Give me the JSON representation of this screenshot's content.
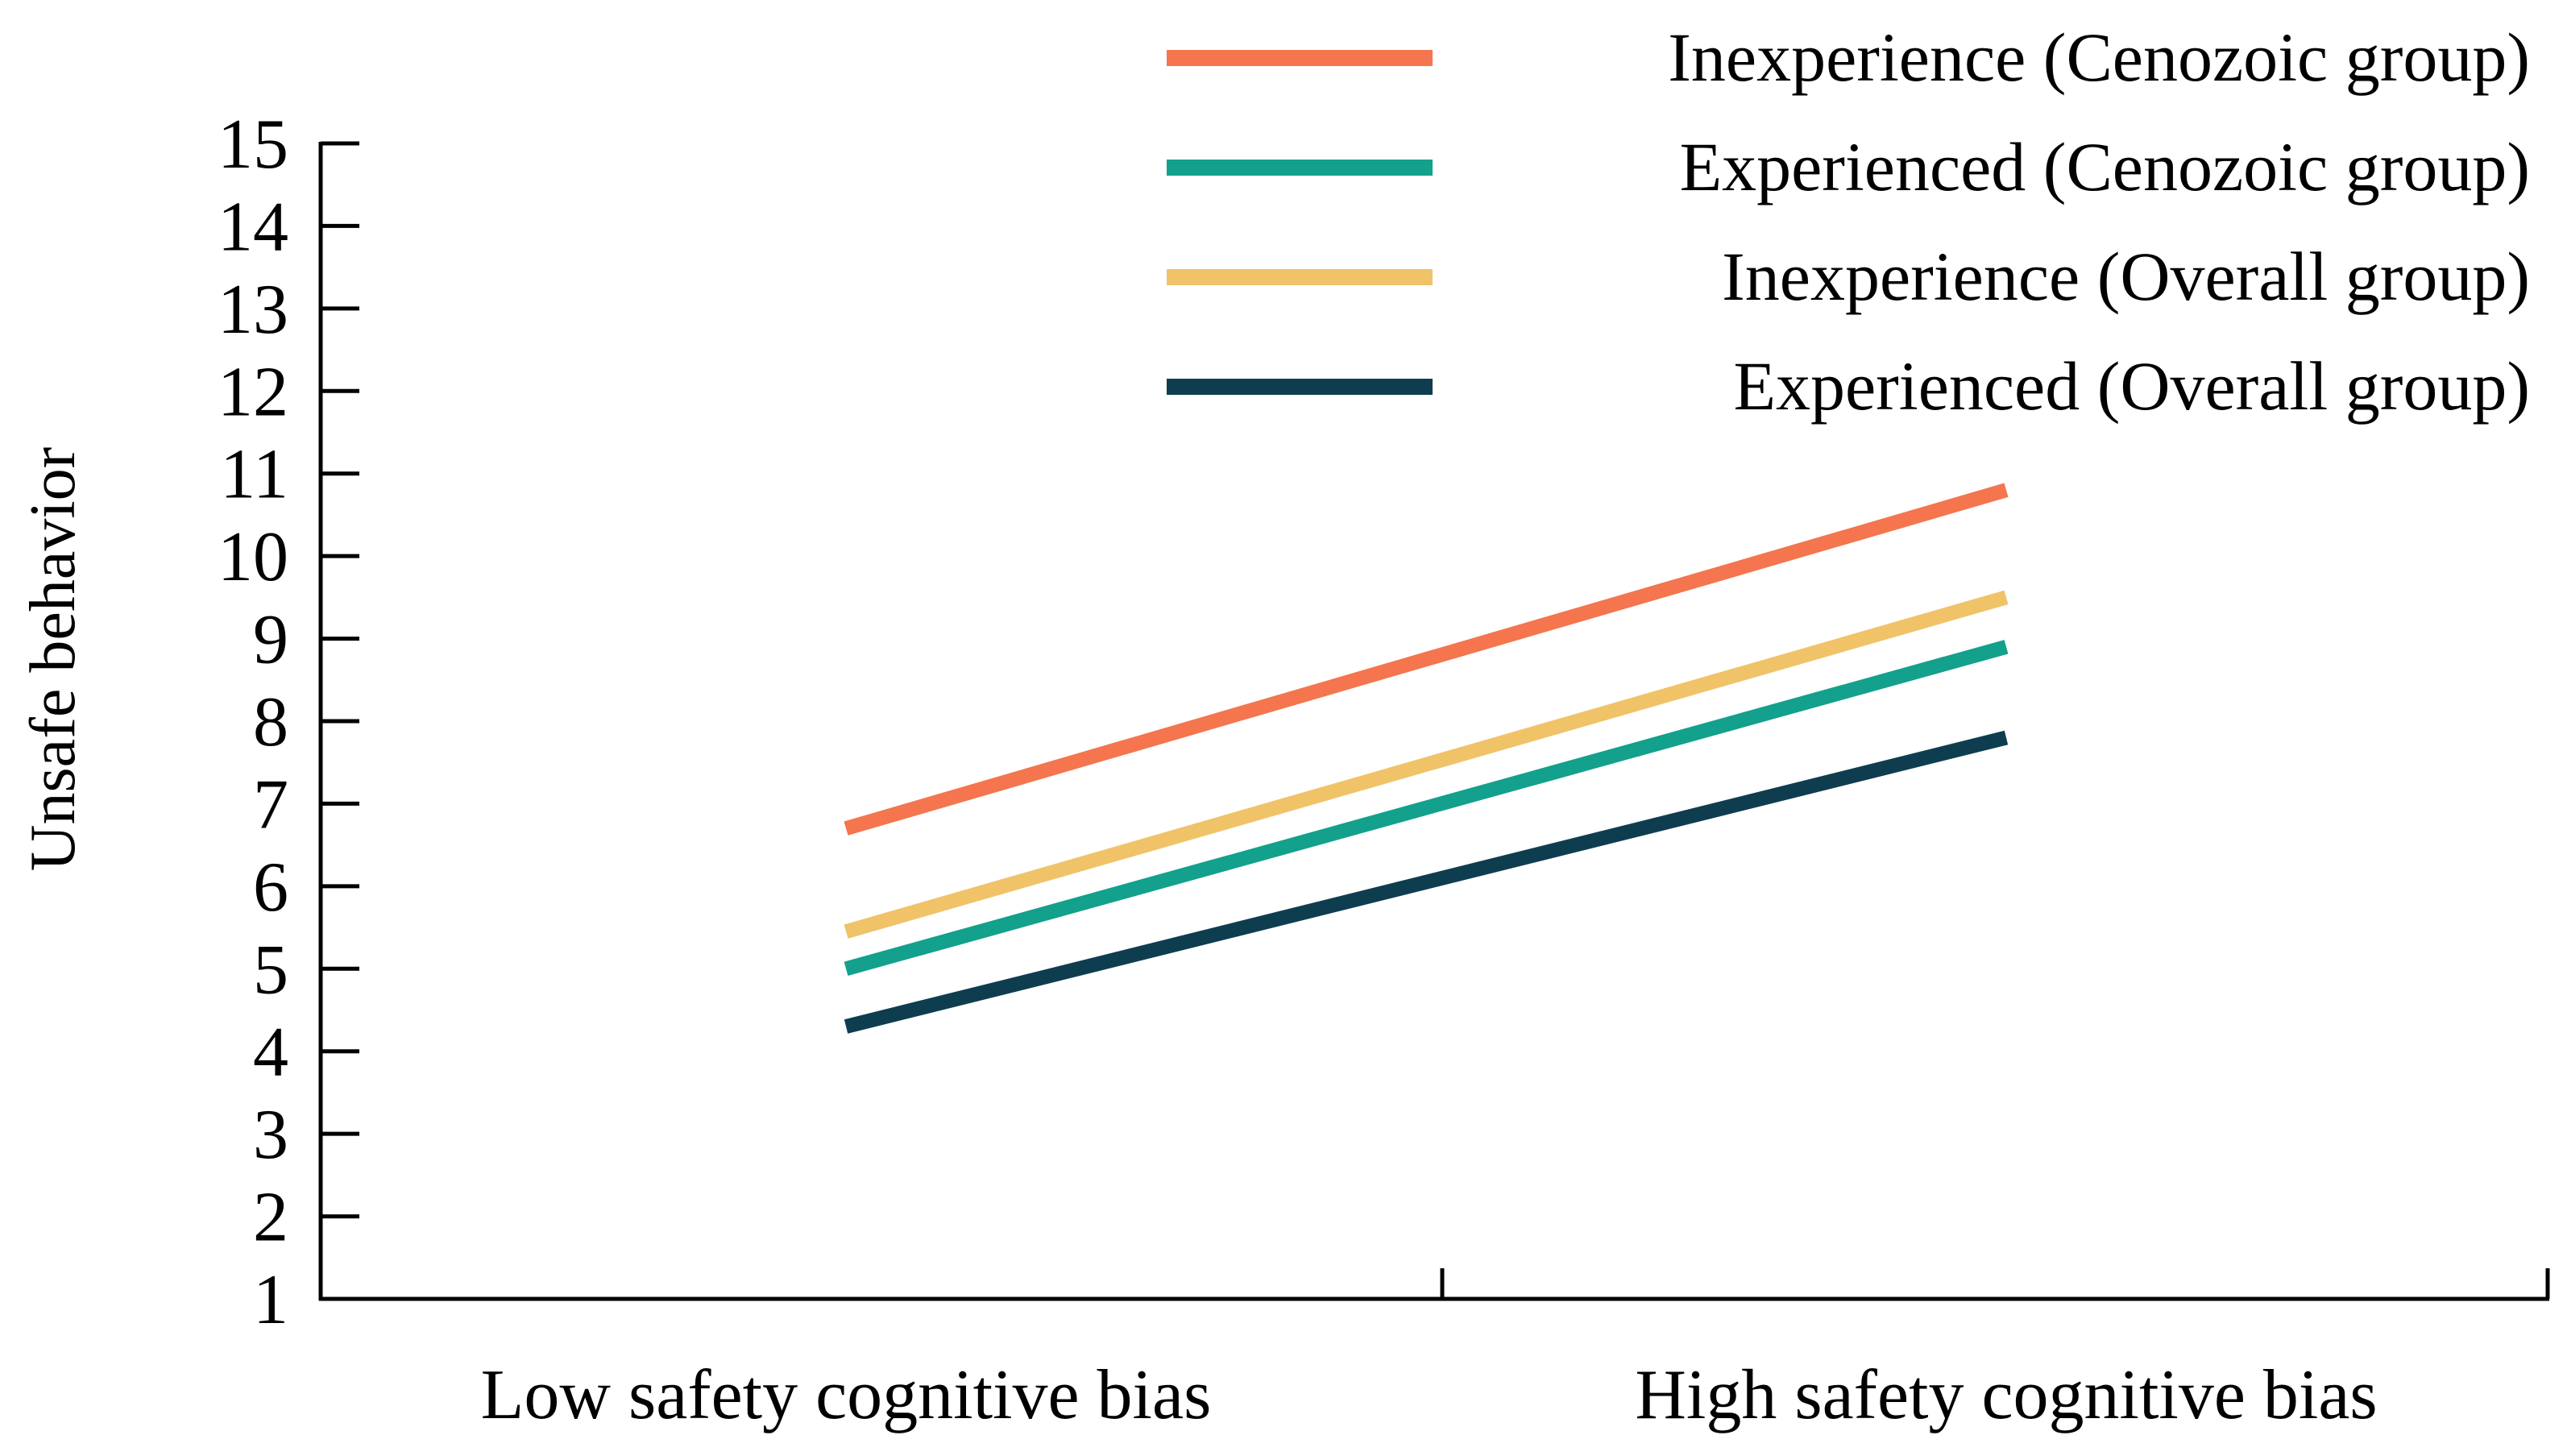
{
  "chart_data": {
    "type": "line",
    "title": "",
    "xlabel": "",
    "ylabel": "Unsafe behavior",
    "ylim": [
      1,
      15
    ],
    "yticks": [
      "1",
      "2",
      "3",
      "4",
      "5",
      "6",
      "7",
      "8",
      "9",
      "10",
      "11",
      "12",
      "13",
      "14",
      "15"
    ],
    "categories": [
      "Low safety cognitive bias",
      "High safety cognitive bias"
    ],
    "grid": false,
    "legend_position": "top-right",
    "series": [
      {
        "name": "Inexperience (Cenozoic group)",
        "color": "#f4754e",
        "values": [
          6.7,
          10.8
        ]
      },
      {
        "name": "Experienced (Cenozoic group)",
        "color": "#13a08c",
        "values": [
          5.0,
          8.9
        ]
      },
      {
        "name": "Inexperience (Overall group)",
        "color": "#f0c369",
        "values": [
          5.45,
          9.5
        ]
      },
      {
        "name": "Experienced (Overall group)",
        "color": "#0e3d4f",
        "values": [
          4.3,
          7.8
        ]
      }
    ]
  }
}
